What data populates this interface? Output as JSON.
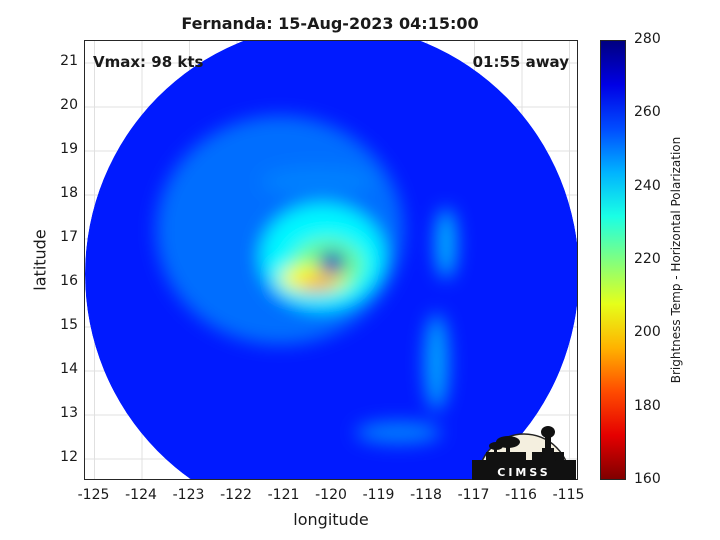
{
  "chart_data": {
    "type": "heatmap",
    "title": "Fernanda: 15-Aug-2023 04:15:00",
    "annotations": {
      "intensity": "Vmax: 98 kts",
      "time_offset": "01:55 away"
    },
    "xlabel": "longitude",
    "ylabel": "latitude",
    "xlim": [
      -125.2,
      -114.8
    ],
    "ylim": [
      11.5,
      21.5
    ],
    "x_ticks": [
      "-125",
      "-124",
      "-123",
      "-122",
      "-121",
      "-120",
      "-119",
      "-118",
      "-117",
      "-116",
      "-115"
    ],
    "y_ticks": [
      "12",
      "13",
      "14",
      "15",
      "16",
      "17",
      "18",
      "19",
      "20",
      "21"
    ],
    "grid": true,
    "colorbar": {
      "label": "Brightness Temp - Horizontal Polarization",
      "range": [
        160,
        280
      ],
      "ticks": [
        "160",
        "180",
        "200",
        "220",
        "240",
        "260",
        "280"
      ],
      "colormap": "jet",
      "placement": "right"
    },
    "storm_center": {
      "lon": -120.1,
      "lat": 16.5
    },
    "swath_center": {
      "lon": -120.0,
      "lat": 16.2
    },
    "background_value": 262,
    "features": [
      {
        "name": "outer-halo",
        "lon": -121.1,
        "lat": 17.2,
        "rlon": 2.6,
        "rlat": 2.6,
        "value": 252
      },
      {
        "name": "eyewall",
        "lon": -120.2,
        "lat": 16.6,
        "rlon": 1.3,
        "rlat": 1.2,
        "value": 236
      },
      {
        "name": "inner-core",
        "lon": -120.1,
        "lat": 16.4,
        "rlon": 0.75,
        "rlat": 0.6,
        "value": 222
      },
      {
        "name": "warm-arc",
        "lon": -120.4,
        "lat": 16.1,
        "rlon": 0.7,
        "rlat": 0.3,
        "value": 205
      },
      {
        "name": "hot-band",
        "lon": -120.3,
        "lat": 15.95,
        "rlon": 0.4,
        "rlat": 0.12,
        "value": 188
      },
      {
        "name": "eye",
        "lon": -120.0,
        "lat": 16.45,
        "rlon": 0.28,
        "rlat": 0.28,
        "value": 272
      },
      {
        "name": "rainband-north",
        "lon": -120.3,
        "lat": 18.3,
        "rlon": 1.2,
        "rlat": 0.35,
        "value": 250
      },
      {
        "name": "rainband-east",
        "lon": -117.6,
        "lat": 16.9,
        "rlon": 0.22,
        "rlat": 0.8,
        "value": 244
      },
      {
        "name": "rainband-southeast",
        "lon": -117.8,
        "lat": 14.2,
        "rlon": 0.25,
        "rlat": 1.1,
        "value": 246
      },
      {
        "name": "rainband-south",
        "lon": -118.6,
        "lat": 12.6,
        "rlon": 0.9,
        "rlat": 0.25,
        "value": 250
      }
    ]
  },
  "logo": {
    "text": "CIMSS"
  }
}
